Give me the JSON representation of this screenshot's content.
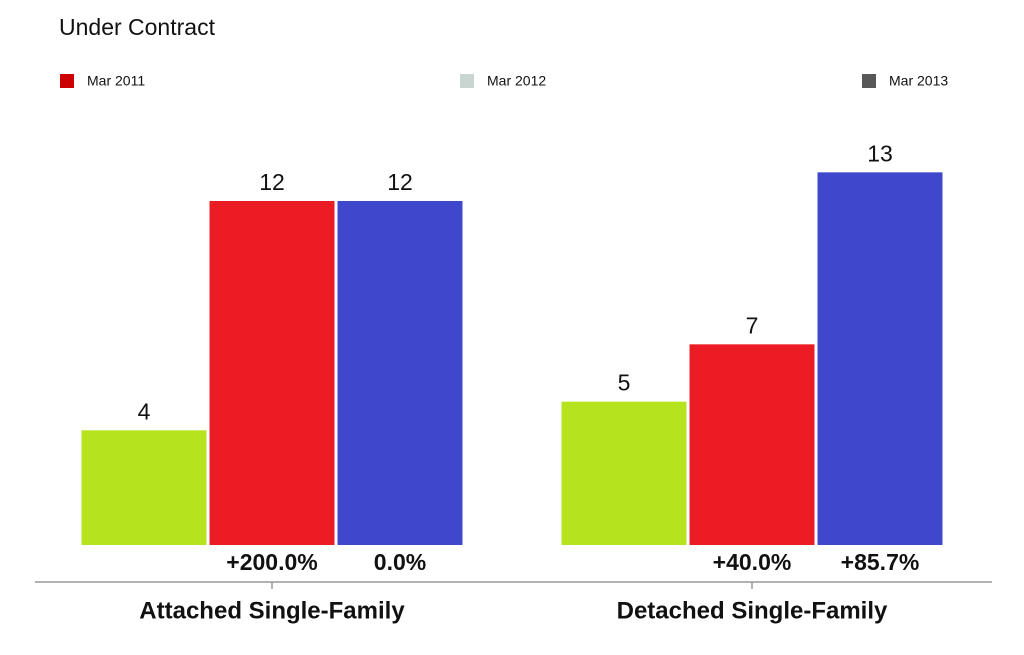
{
  "chart_data": {
    "type": "bar",
    "title": "Under Contract",
    "categories": [
      "Attached Single-Family",
      "Detached Single-Family"
    ],
    "series": [
      {
        "name": "Mar 2011",
        "color": "#b5e41f",
        "legend_color": "#cc0000",
        "values": [
          4,
          5
        ]
      },
      {
        "name": "Mar 2012",
        "color": "#ec1c24",
        "legend_color": "#c9d5d1",
        "values": [
          12,
          7
        ],
        "change_labels": [
          "+200.0%",
          "+40.0%"
        ]
      },
      {
        "name": "Mar 2013",
        "color": "#3f48cc",
        "legend_color": "#585858",
        "values": [
          12,
          13
        ],
        "change_labels": [
          "0.0%",
          "+85.7%"
        ]
      }
    ],
    "ylim": [
      0,
      15
    ]
  }
}
